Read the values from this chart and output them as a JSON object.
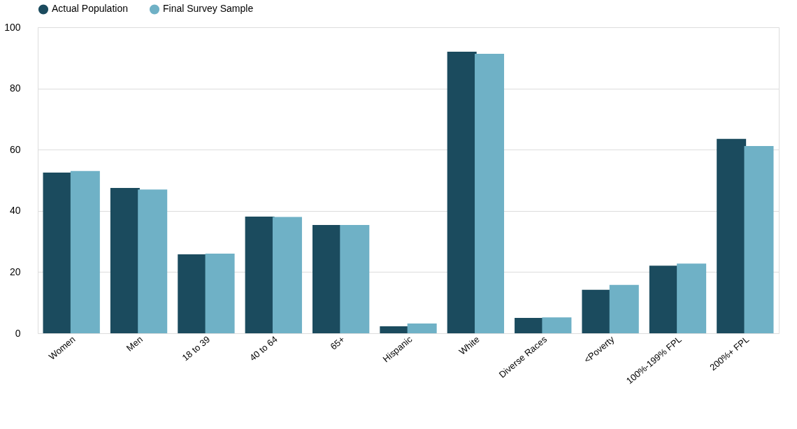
{
  "chart_data": {
    "type": "bar",
    "categories": [
      "Women",
      "Men",
      "18 to 39",
      "40 to 64",
      "65+",
      "Hispanic",
      "White",
      "Diverse Races",
      "<Poverty",
      "100%-199% FPL",
      "200%+ FPL"
    ],
    "series": [
      {
        "name": "Actual Population",
        "color": "#1b4b5e",
        "values": [
          52.5,
          47.5,
          25.8,
          38.1,
          35.4,
          2.3,
          92,
          5,
          14.2,
          22.1,
          63.5
        ]
      },
      {
        "name": "Final Survey Sample",
        "color": "#6fb1c6",
        "values": [
          53,
          47,
          26,
          38,
          35.4,
          3.2,
          91.3,
          5.2,
          15.8,
          22.8,
          61.2
        ]
      }
    ],
    "ylim": [
      0,
      100
    ],
    "yticks": [
      0,
      20,
      40,
      60,
      80,
      100
    ],
    "grid": "y",
    "legend": "top"
  }
}
